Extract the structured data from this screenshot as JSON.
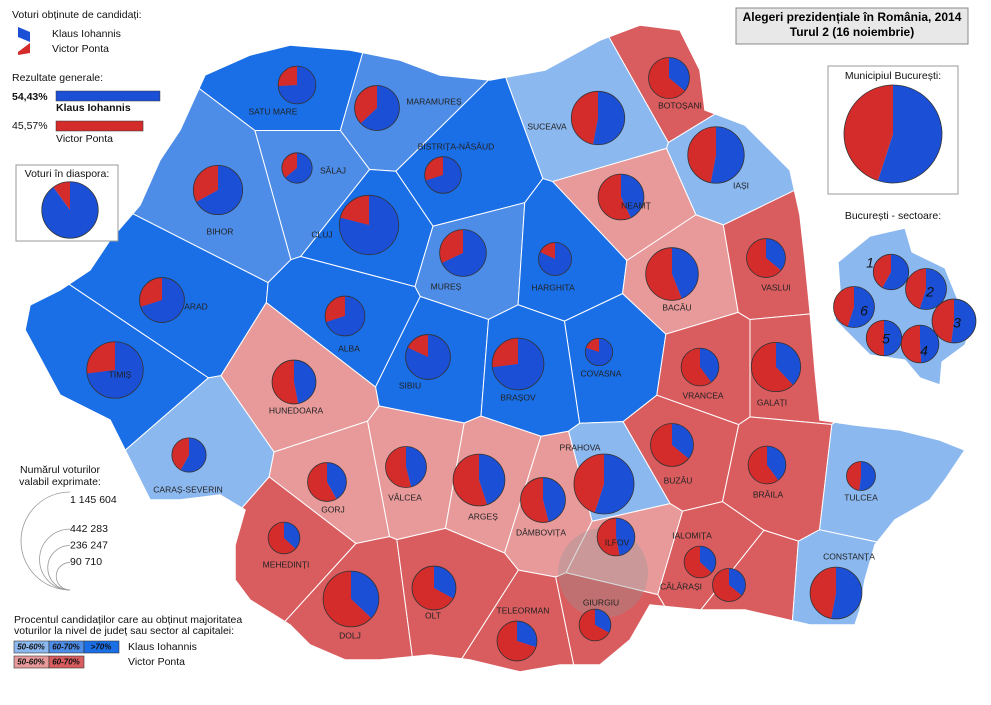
{
  "title": {
    "line1": "Alegeri prezidențiale în România, 2014",
    "line2": "Turul 2 (16 noiembrie)"
  },
  "candidates_legend": {
    "title": "Voturi obținute de candidați:",
    "items": [
      {
        "name": "Klaus Iohannis",
        "color": "#1a4fd6"
      },
      {
        "name": "Victor Ponta",
        "color": "#d42b2b"
      }
    ]
  },
  "general_results": {
    "title": "Rezultate generale:",
    "names": [
      "Klaus Iohannis",
      "Victor Ponta"
    ],
    "values": [
      54.43,
      45.57
    ],
    "value_labels": [
      "54,43%",
      "45,57%"
    ]
  },
  "diaspora": {
    "title": "Voturi în diaspora:",
    "share": 90,
    "votes": 380000
  },
  "bucharest": {
    "title": "Municipiul București:",
    "share": 55,
    "votes": 1145604
  },
  "sectors": {
    "title": "București - sectoare:",
    "items": [
      {
        "label": "1",
        "share": 58,
        "votes": 150000
      },
      {
        "label": "2",
        "share": 55,
        "votes": 200000
      },
      {
        "label": "3",
        "share": 52,
        "votes": 230000
      },
      {
        "label": "4",
        "share": 49,
        "votes": 170000
      },
      {
        "label": "5",
        "share": 50,
        "votes": 150000
      },
      {
        "label": "6",
        "share": 55,
        "votes": 200000
      }
    ]
  },
  "size_legend": {
    "title_lines": [
      "Numărul voturilor",
      "valabil exprimate:"
    ],
    "ticks": [
      {
        "value": 1145604,
        "label": "1 145 604"
      },
      {
        "value": 442283,
        "label": "442 283"
      },
      {
        "value": 236247,
        "label": "236 247"
      },
      {
        "value": 90710,
        "label": "90 710"
      }
    ]
  },
  "band_legend": {
    "title_lines": [
      "Procentul candidaților care au obținut majoritatea",
      "voturilor la nivel de județ sau sector al capitalei:"
    ],
    "rows": [
      {
        "name": "Klaus Iohannis",
        "bands": [
          {
            "label": "50-60%",
            "from": 50,
            "color": "#8cb8f0"
          },
          {
            "label": "60-70%",
            "from": 60,
            "color": "#4d8de8"
          },
          {
            "label": ">70%",
            "from": 70,
            "color": "#1a6ee6"
          }
        ]
      },
      {
        "name": "Victor Ponta",
        "bands": [
          {
            "label": "50-60%",
            "from": 50,
            "color": "#e89a9b"
          },
          {
            "label": "60-70%",
            "from": 60,
            "color": "#d95c5f"
          }
        ]
      }
    ]
  },
  "counties": [
    {
      "name": "SATU MARE",
      "share": 74,
      "votes": 170000
    },
    {
      "name": "MARAMUREȘ",
      "share": 63,
      "votes": 240000
    },
    {
      "name": "BOTOȘANI",
      "share": 36,
      "votes": 200000
    },
    {
      "name": "SUCEAVA",
      "share": 53,
      "votes": 340000
    },
    {
      "name": "SĂLAJ",
      "share": 64,
      "votes": 110000
    },
    {
      "name": "BISTRIȚA-NĂSĂUD",
      "share": 70,
      "votes": 160000
    },
    {
      "name": "IAȘI",
      "share": 53,
      "votes": 380000
    },
    {
      "name": "BIHOR",
      "share": 67,
      "votes": 290000
    },
    {
      "name": "CLUJ",
      "share": 79,
      "votes": 420000
    },
    {
      "name": "NEAMȚ",
      "share": 43,
      "votes": 250000
    },
    {
      "name": "MUREȘ",
      "share": 68,
      "votes": 260000
    },
    {
      "name": "HARGHITA",
      "share": 82,
      "votes": 130000
    },
    {
      "name": "BACĂU",
      "share": 44,
      "votes": 330000
    },
    {
      "name": "VASLUI",
      "share": 36,
      "votes": 180000
    },
    {
      "name": "ARAD",
      "share": 70,
      "votes": 240000
    },
    {
      "name": "ALBA",
      "share": 70,
      "votes": 190000
    },
    {
      "name": "SIBIU",
      "share": 82,
      "votes": 240000
    },
    {
      "name": "COVASNA",
      "share": 80,
      "votes": 90000
    },
    {
      "name": "BRAȘOV",
      "share": 73,
      "votes": 320000
    },
    {
      "name": "TIMIȘ",
      "share": 73,
      "votes": 380000
    },
    {
      "name": "HUNEDOARA",
      "share": 47,
      "votes": 230000
    },
    {
      "name": "VRANCEA",
      "share": 40,
      "votes": 170000
    },
    {
      "name": "GALAȚI",
      "share": 38,
      "votes": 290000
    },
    {
      "name": "CARAȘ-SEVERIN",
      "share": 58,
      "votes": 140000
    },
    {
      "name": "PRAHOVA",
      "share": 55,
      "votes": 430000
    },
    {
      "name": "BUZĂU",
      "share": 36,
      "votes": 220000
    },
    {
      "name": "GORJ",
      "share": 42,
      "votes": 180000
    },
    {
      "name": "VÂLCEA",
      "share": 46,
      "votes": 200000
    },
    {
      "name": "ARGEȘ",
      "share": 45,
      "votes": 320000
    },
    {
      "name": "BRĂILA",
      "share": 40,
      "votes": 170000
    },
    {
      "name": "DÂMBOVIȚA",
      "share": 46,
      "votes": 240000
    },
    {
      "name": "TULCEA",
      "share": 52,
      "votes": 100000
    },
    {
      "name": "MEHEDINȚI",
      "share": 37,
      "votes": 120000
    },
    {
      "name": "ILFOV",
      "share": 47,
      "votes": 170000
    },
    {
      "name": "IALOMIȚA",
      "share": 37,
      "votes": 120000
    },
    {
      "name": "CĂLĂRAȘI",
      "share": 36,
      "votes": 130000
    },
    {
      "name": "CONSTANȚA",
      "share": 53,
      "votes": 320000
    },
    {
      "name": "DOLJ",
      "share": 37,
      "votes": 370000
    },
    {
      "name": "OLT",
      "share": 33,
      "votes": 230000
    },
    {
      "name": "TELEORMAN",
      "share": 30,
      "votes": 190000
    },
    {
      "name": "GIURGIU",
      "share": 33,
      "votes": 120000
    }
  ]
}
